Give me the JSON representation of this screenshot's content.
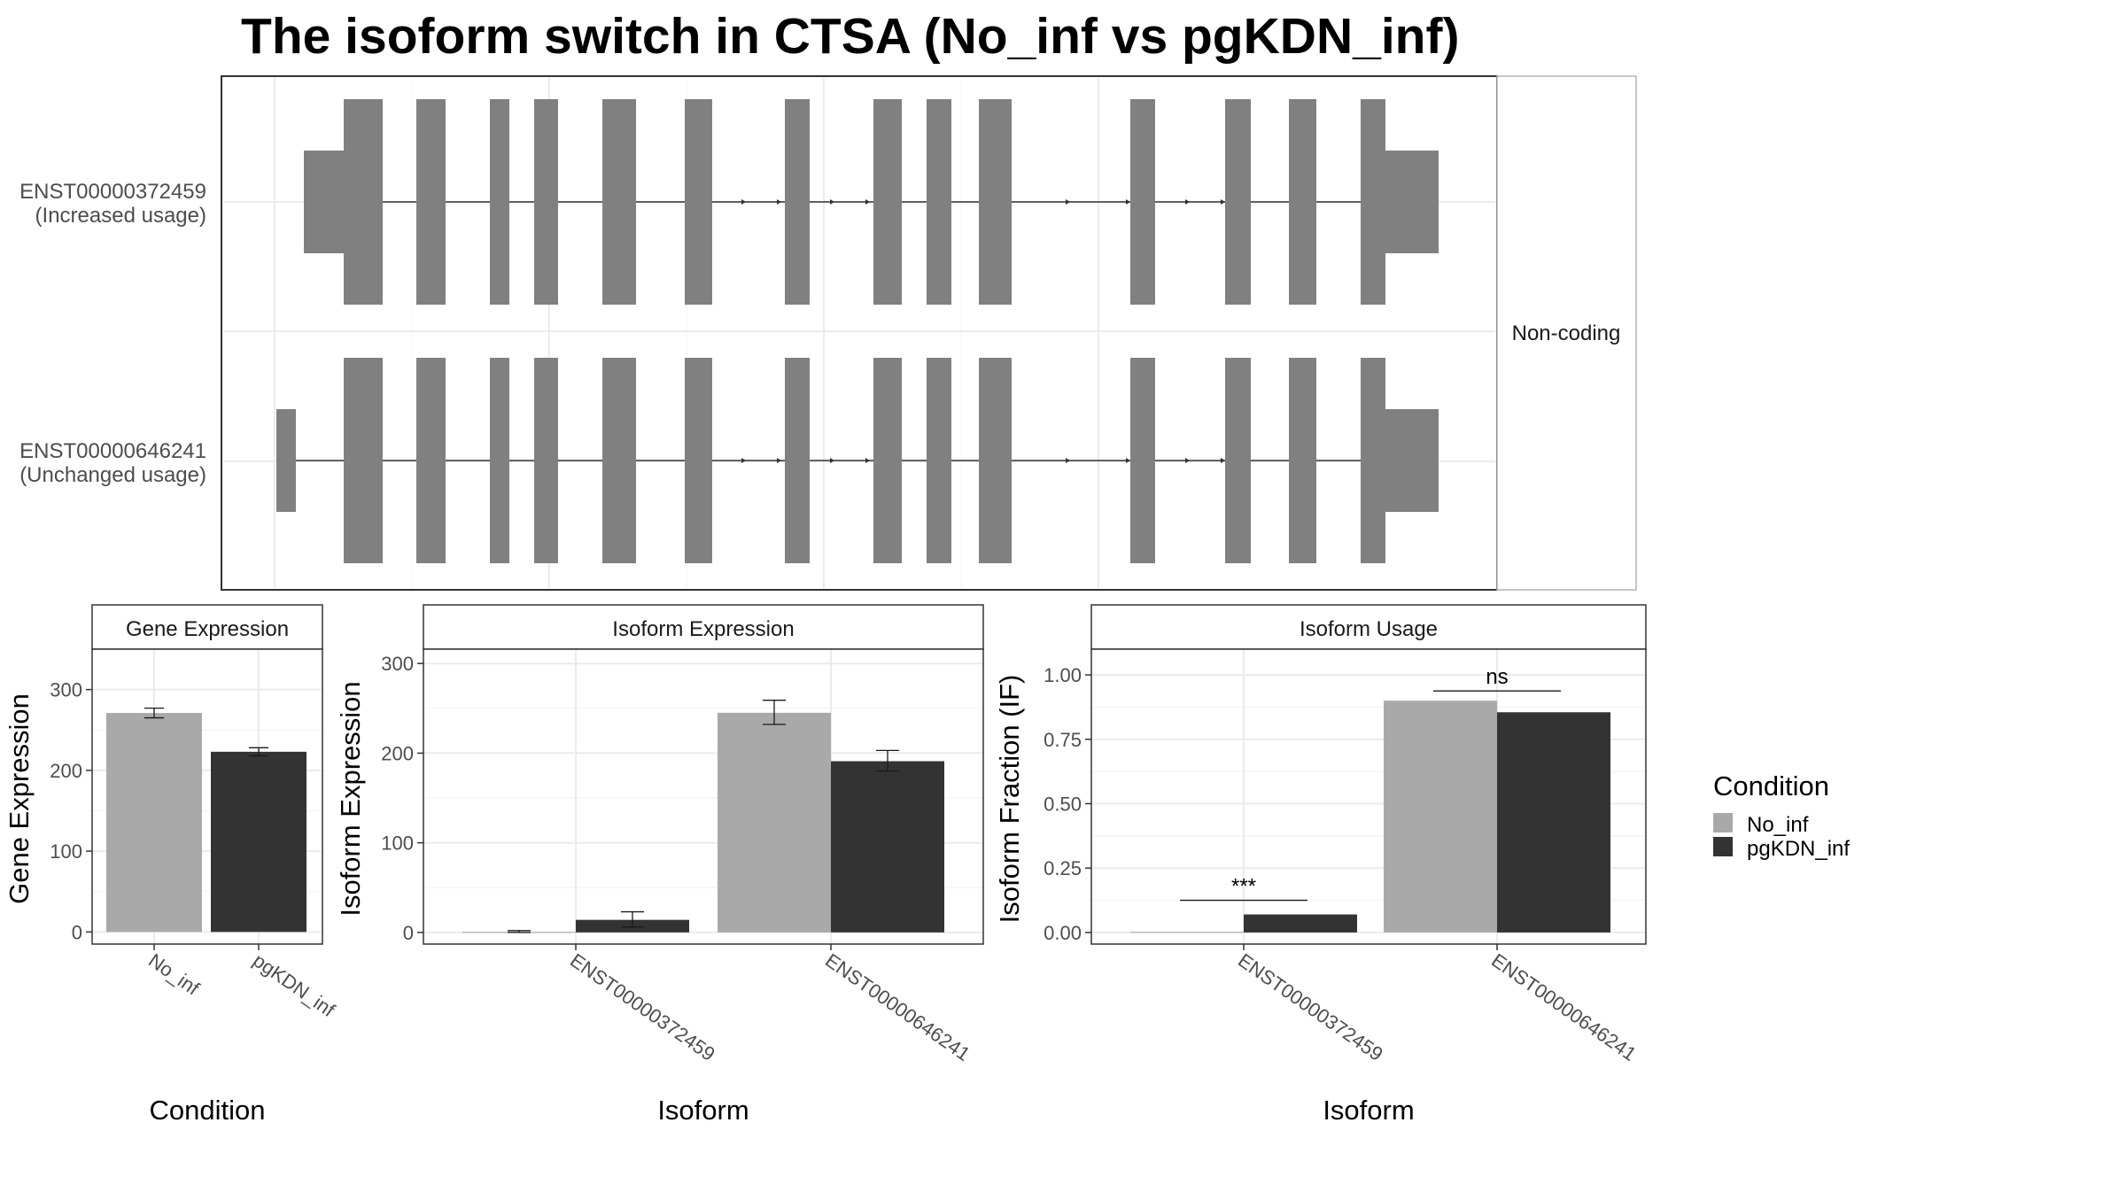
{
  "chart_data": [
    {
      "type": "gene-structure",
      "title": "The isoform switch in CTSA (No_inf vs pgKDN_inf)",
      "facet_label": "Non-coding",
      "transcripts": [
        {
          "id": "ENST00000372459",
          "label_line1": "ENST00000372459",
          "label_line2": "(Increased usage)"
        },
        {
          "id": "ENST00000646241",
          "label_line1": "ENST00000646241",
          "label_line2": "(Unchanged usage)"
        }
      ]
    },
    {
      "type": "bar",
      "panel_title": "Gene Expression",
      "xlabel": "Condition",
      "ylabel": "Gene Expression",
      "categories": [
        "No_inf",
        "pgKDN_inf"
      ],
      "values": [
        271,
        223
      ],
      "error_low": [
        265,
        218
      ],
      "error_high": [
        277,
        228
      ],
      "colors": [
        "#a9a9a9",
        "#333333"
      ],
      "ylim": [
        -15,
        350
      ],
      "yticks": [
        0,
        100,
        200,
        300
      ]
    },
    {
      "type": "bar",
      "panel_title": "Isoform Expression",
      "xlabel": "Isoform",
      "ylabel": "Isoform Expression",
      "categories": [
        "ENST00000372459",
        "ENST00000646241"
      ],
      "series": [
        {
          "name": "No_inf",
          "values": [
            0.5,
            245
          ],
          "error_low": [
            0,
            232
          ],
          "error_high": [
            2,
            259
          ],
          "color": "#a9a9a9"
        },
        {
          "name": "pgKDN_inf",
          "values": [
            14,
            191
          ],
          "error_low": [
            6,
            180
          ],
          "error_high": [
            23,
            203
          ],
          "color": "#333333"
        }
      ],
      "ylim": [
        -13,
        316
      ],
      "yticks": [
        0,
        100,
        200,
        300
      ]
    },
    {
      "type": "bar",
      "panel_title": "Isoform Usage",
      "xlabel": "Isoform",
      "ylabel": "Isoform Fraction (IF)",
      "categories": [
        "ENST00000372459",
        "ENST00000646241"
      ],
      "series": [
        {
          "name": "No_inf",
          "values": [
            0.002,
            0.9
          ],
          "color": "#a9a9a9"
        },
        {
          "name": "pgKDN_inf",
          "values": [
            0.07,
            0.855
          ],
          "color": "#333333"
        }
      ],
      "significance": [
        "***",
        "ns"
      ],
      "ylim": [
        -0.045,
        1.1
      ],
      "yticks": [
        "0.00",
        "0.25",
        "0.50",
        "0.75",
        "1.00"
      ]
    }
  ],
  "legend": {
    "title": "Condition",
    "items": [
      {
        "label": "No_inf",
        "color": "#a9a9a9"
      },
      {
        "label": "pgKDN_inf",
        "color": "#333333"
      }
    ]
  }
}
